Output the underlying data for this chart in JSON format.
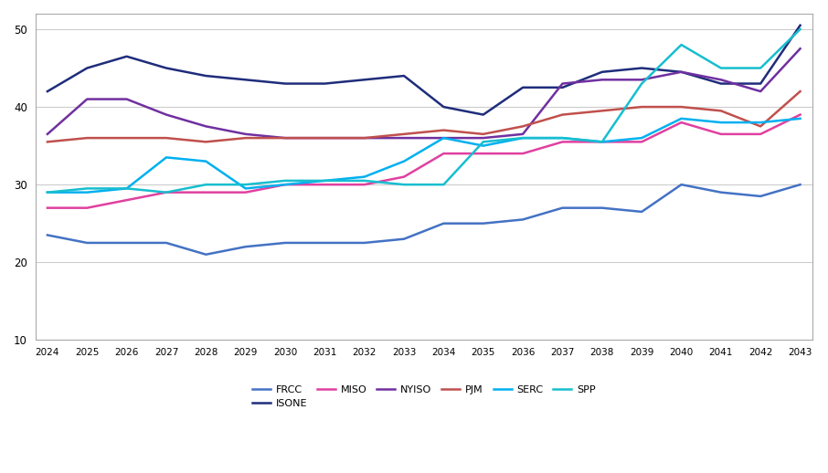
{
  "years": [
    2024,
    2025,
    2026,
    2027,
    2028,
    2029,
    2030,
    2031,
    2032,
    2033,
    2034,
    2035,
    2036,
    2037,
    2038,
    2039,
    2040,
    2041,
    2042,
    2043
  ],
  "series": {
    "FRCC": [
      23.5,
      22.5,
      22.5,
      22.5,
      21.0,
      22.0,
      22.5,
      22.5,
      22.5,
      23.0,
      25.0,
      25.0,
      25.5,
      27.0,
      27.0,
      26.5,
      30.0,
      29.0,
      28.5,
      30.0
    ],
    "ISONE": [
      42.0,
      45.0,
      46.5,
      45.0,
      44.0,
      43.5,
      43.0,
      43.0,
      43.5,
      44.0,
      40.0,
      39.0,
      42.5,
      42.5,
      44.5,
      45.0,
      44.5,
      43.0,
      43.0,
      50.5
    ],
    "MISO": [
      27.0,
      27.0,
      28.0,
      29.0,
      29.0,
      29.0,
      30.0,
      30.0,
      30.0,
      31.0,
      34.0,
      34.0,
      34.0,
      35.5,
      35.5,
      35.5,
      38.0,
      36.5,
      36.5,
      39.0
    ],
    "NYISO": [
      36.5,
      41.0,
      41.0,
      39.0,
      37.5,
      36.5,
      36.0,
      36.0,
      36.0,
      36.0,
      36.0,
      36.0,
      36.5,
      43.0,
      43.5,
      43.5,
      44.5,
      43.5,
      42.0,
      47.5
    ],
    "PJM": [
      35.5,
      36.0,
      36.0,
      36.0,
      35.5,
      36.0,
      36.0,
      36.0,
      36.0,
      36.5,
      37.0,
      36.5,
      37.5,
      39.0,
      39.5,
      40.0,
      40.0,
      39.5,
      37.5,
      42.0
    ],
    "SERC": [
      29.0,
      29.0,
      29.5,
      33.5,
      33.0,
      29.5,
      30.0,
      30.5,
      31.0,
      33.0,
      36.0,
      35.0,
      36.0,
      36.0,
      35.5,
      36.0,
      38.5,
      38.0,
      38.0,
      38.5
    ],
    "SPP": [
      29.0,
      29.5,
      29.5,
      29.0,
      30.0,
      30.0,
      30.5,
      30.5,
      30.5,
      30.0,
      30.0,
      35.5,
      36.0,
      36.0,
      35.5,
      43.0,
      48.0,
      45.0,
      45.0,
      50.0
    ]
  },
  "colors": {
    "FRCC": "#4472C4",
    "ISONE": "#1F2D7B",
    "MISO": "#E040A0",
    "NYISO": "#7030A0",
    "PJM": "#C0504D",
    "SERC": "#00B0F0",
    "SPP": "#17BECF"
  },
  "ylim": [
    10,
    52
  ],
  "yticks": [
    10,
    20,
    30,
    40,
    50
  ],
  "background_color": "#FFFFFF",
  "grid_color": "#CCCCCC",
  "legend_order": [
    "FRCC",
    "ISONE",
    "MISO",
    "NYISO",
    "PJM",
    "SERC",
    "SPP"
  ]
}
